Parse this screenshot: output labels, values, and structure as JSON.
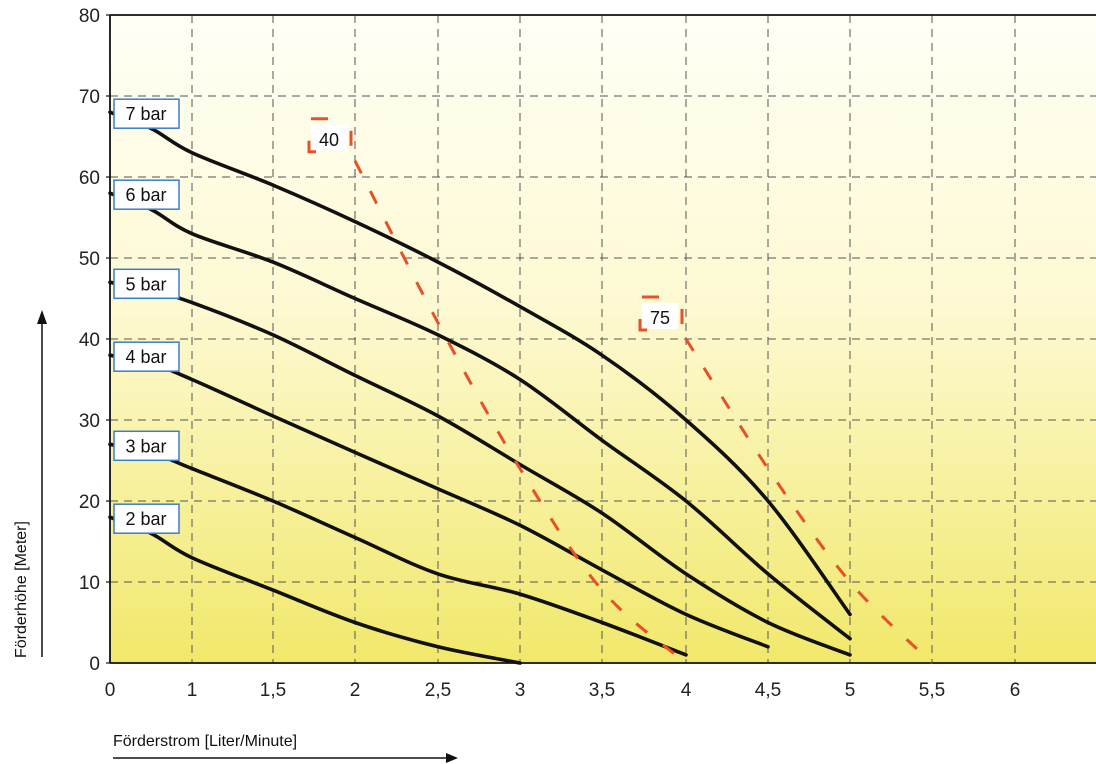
{
  "chart_data": {
    "type": "line",
    "xlabel": "Förderstrom  [Liter/Minute]",
    "ylabel": "Förderhöhe  [Meter]",
    "x_ticks": [
      "0",
      "1",
      "1,5",
      "2",
      "2,5",
      "3",
      "3,5",
      "4",
      "4,5",
      "5",
      "5,5",
      "6"
    ],
    "y_ticks": [
      "0",
      "10",
      "20",
      "30",
      "40",
      "50",
      "60",
      "70",
      "80"
    ],
    "ylim": [
      0,
      80
    ],
    "grid": true,
    "series": [
      {
        "name": "7 bar",
        "x": [
          0,
          0.5,
          1,
          1.5,
          2,
          2.5,
          3,
          3.5,
          4,
          4.5,
          5
        ],
        "y": [
          68,
          66,
          63,
          59,
          54.5,
          49.5,
          44,
          38,
          30,
          20,
          6
        ]
      },
      {
        "name": "6 bar",
        "x": [
          0,
          0.5,
          1,
          1.5,
          2,
          2.5,
          3,
          3.5,
          4,
          4.5,
          5
        ],
        "y": [
          58,
          56,
          53,
          49.5,
          45,
          40.5,
          35,
          27.5,
          20,
          11,
          3
        ]
      },
      {
        "name": "5 bar",
        "x": [
          0,
          0.5,
          1,
          1.5,
          2,
          2.5,
          3,
          3.5,
          4,
          4.5,
          5
        ],
        "y": [
          47,
          46,
          44.5,
          40.5,
          35.5,
          30.5,
          24.5,
          18.5,
          11,
          5,
          1
        ]
      },
      {
        "name": "4 bar",
        "x": [
          0,
          0.5,
          1,
          1.5,
          2,
          2.5,
          3,
          3.5,
          4,
          4.5
        ],
        "y": [
          38,
          37,
          35,
          30.5,
          26,
          21.5,
          17,
          11.5,
          6,
          2
        ]
      },
      {
        "name": "3 bar",
        "x": [
          0,
          0.5,
          1,
          1.5,
          2,
          2.5,
          3,
          3.5,
          4
        ],
        "y": [
          27,
          26,
          24,
          20,
          15.5,
          11,
          8.5,
          5,
          1
        ]
      },
      {
        "name": "2 bar",
        "x": [
          0,
          0.5,
          1,
          1.5,
          2,
          2.5,
          3
        ],
        "y": [
          18,
          16,
          13,
          9,
          5,
          2,
          0
        ]
      }
    ],
    "dashed_lines": [
      {
        "name": "40",
        "x": [
          2,
          2.5,
          3,
          3.5,
          4
        ],
        "y": [
          62,
          42,
          24,
          9,
          0
        ]
      },
      {
        "name": "75",
        "x": [
          4,
          4.5,
          5,
          5.5
        ],
        "y": [
          40,
          24,
          10,
          0
        ]
      }
    ],
    "colors": {
      "curve": "#111111",
      "dashed": "#e8502a",
      "grid": "#555555",
      "bg_top": "#fffff4",
      "bg_bottom": "#f2ea72",
      "label_border": "#3a7ec8"
    }
  }
}
